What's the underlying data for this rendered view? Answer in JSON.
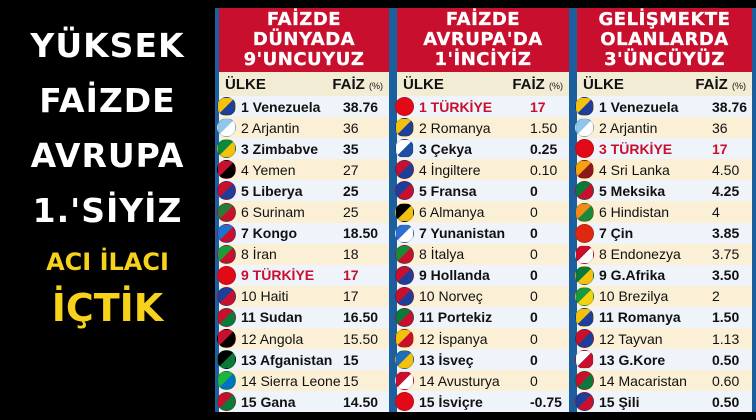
{
  "left": {
    "lines": [
      "YÜKSEK",
      "FAİZDE",
      "AVRUPA",
      "1.'SİYİZ"
    ],
    "yellow1": "ACI İLACI",
    "yellow2": "İÇTİK"
  },
  "colors": {
    "header_red": "#c8102e",
    "highlight_red": "#c8102e",
    "panel_blue": "#1c5f9e",
    "yellow": "#f7d21a"
  },
  "col_country": "ÜLKE",
  "col_rate": "FAİZ",
  "col_unit": "(%)",
  "panels": [
    {
      "title": [
        "FAİZDE",
        "DÜNYADA",
        "9'UNCUYUZ"
      ],
      "rows": [
        {
          "n": "1 Venezuela",
          "v": "38.76",
          "f": [
            "#f4c20d",
            "#1e3f99"
          ]
        },
        {
          "n": "2 Arjantin",
          "v": "36",
          "f": [
            "#8ec7ea",
            "#ffffff"
          ]
        },
        {
          "n": "3 Zimbabve",
          "v": "35",
          "f": [
            "#0a8a3a",
            "#f4c20d"
          ]
        },
        {
          "n": "4 Yemen",
          "v": "27",
          "f": [
            "#c8102e",
            "#000000"
          ]
        },
        {
          "n": "5 Liberya",
          "v": "25",
          "f": [
            "#c8102e",
            "#1e3f99"
          ]
        },
        {
          "n": "6 Surinam",
          "v": "25",
          "f": [
            "#2a7a3a",
            "#c8102e"
          ]
        },
        {
          "n": "7 Kongo",
          "v": "18.50",
          "f": [
            "#1e73d2",
            "#c8102e"
          ]
        },
        {
          "n": "8 İran",
          "v": "18",
          "f": [
            "#1f9a3a",
            "#c8102e"
          ]
        },
        {
          "n": "9 TÜRKİYE",
          "v": "17",
          "f": [
            "#e30a17",
            "#e30a17"
          ],
          "tr": true
        },
        {
          "n": "10 Haiti",
          "v": "17",
          "f": [
            "#1e3f99",
            "#c8102e"
          ]
        },
        {
          "n": "11 Sudan",
          "v": "16.50",
          "f": [
            "#c8102e",
            "#0a7a3a"
          ]
        },
        {
          "n": "12 Angola",
          "v": "15.50",
          "f": [
            "#c8102e",
            "#000000"
          ]
        },
        {
          "n": "13 Afganistan",
          "v": "15",
          "f": [
            "#000000",
            "#0a7a3a"
          ]
        },
        {
          "n": "14 Sierra Leone",
          "v": "15",
          "f": [
            "#1eb53a",
            "#0072c6"
          ]
        },
        {
          "n": "15 Gana",
          "v": "14.50",
          "f": [
            "#c8102e",
            "#0a7a3a"
          ]
        }
      ]
    },
    {
      "title": [
        "FAİZDE",
        "AVRUPA'DA",
        "1'İNCİYİZ"
      ],
      "rows": [
        {
          "n": "1 TÜRKİYE",
          "v": "17",
          "f": [
            "#e30a17",
            "#e30a17"
          ],
          "tr": true
        },
        {
          "n": "2 Romanya",
          "v": "1.50",
          "f": [
            "#f4c20d",
            "#1e3f99"
          ]
        },
        {
          "n": "3 Çekya",
          "v": "0.25",
          "f": [
            "#ffffff",
            "#1e4fa0"
          ]
        },
        {
          "n": "4 İngiltere",
          "v": "0.10",
          "f": [
            "#c8102e",
            "#1e3f99"
          ]
        },
        {
          "n": "5 Fransa",
          "v": "0",
          "f": [
            "#1e3f99",
            "#c8102e"
          ]
        },
        {
          "n": "6 Almanya",
          "v": "0",
          "f": [
            "#000000",
            "#f4c20d"
          ]
        },
        {
          "n": "7 Yunanistan",
          "v": "0",
          "f": [
            "#2e6fd0",
            "#ffffff"
          ]
        },
        {
          "n": "8 İtalya",
          "v": "0",
          "f": [
            "#1a8a3a",
            "#c8102e"
          ]
        },
        {
          "n": "9 Hollanda",
          "v": "0",
          "f": [
            "#c8102e",
            "#1e3f99"
          ]
        },
        {
          "n": "10 Norveç",
          "v": "0",
          "f": [
            "#c8102e",
            "#1e3f99"
          ]
        },
        {
          "n": "11 Portekiz",
          "v": "0",
          "f": [
            "#0a7a3a",
            "#c8102e"
          ]
        },
        {
          "n": "12 İspanya",
          "v": "0",
          "f": [
            "#f4c20d",
            "#c8102e"
          ]
        },
        {
          "n": "13 İsveç",
          "v": "0",
          "f": [
            "#1e6fb8",
            "#f4c20d"
          ]
        },
        {
          "n": "14 Avusturya",
          "v": "0",
          "f": [
            "#c8102e",
            "#ffffff"
          ]
        },
        {
          "n": "15 İsviçre",
          "v": "-0.75",
          "f": [
            "#e30a17",
            "#e30a17"
          ]
        }
      ]
    },
    {
      "title": [
        "GELİŞMEKTE",
        "OLANLARDA",
        "3'ÜNCÜYÜZ"
      ],
      "rows": [
        {
          "n": "1 Venezuela",
          "v": "38.76",
          "f": [
            "#f4c20d",
            "#1e3f99"
          ]
        },
        {
          "n": "2 Arjantin",
          "v": "36",
          "f": [
            "#8ec7ea",
            "#ffffff"
          ]
        },
        {
          "n": "3 TÜRKİYE",
          "v": "17",
          "f": [
            "#e30a17",
            "#e30a17"
          ],
          "tr": true
        },
        {
          "n": "4 Sri Lanka",
          "v": "4.50",
          "f": [
            "#f4a20d",
            "#8a1a1a"
          ]
        },
        {
          "n": "5 Meksika",
          "v": "4.25",
          "f": [
            "#0a7a3a",
            "#c8102e"
          ]
        },
        {
          "n": "6 Hindistan",
          "v": "4",
          "f": [
            "#f48a1a",
            "#1a8a3a"
          ]
        },
        {
          "n": "7 Çin",
          "v": "3.85",
          "f": [
            "#de2910",
            "#de2910"
          ]
        },
        {
          "n": "8 Endonezya",
          "v": "3.75",
          "f": [
            "#c8102e",
            "#ffffff"
          ]
        },
        {
          "n": "9 G.Afrika",
          "v": "3.50",
          "f": [
            "#0a7a3a",
            "#f4c20d"
          ]
        },
        {
          "n": "10 Brezilya",
          "v": "2",
          "f": [
            "#1a9a3a",
            "#f4d20d"
          ]
        },
        {
          "n": "11 Romanya",
          "v": "1.50",
          "f": [
            "#f4c20d",
            "#1e3f99"
          ]
        },
        {
          "n": "12 Tayvan",
          "v": "1.13",
          "f": [
            "#c8102e",
            "#1e3f99"
          ]
        },
        {
          "n": "13 G.Kore",
          "v": "0.50",
          "f": [
            "#ffffff",
            "#c8102e"
          ]
        },
        {
          "n": "14 Macaristan",
          "v": "0.60",
          "f": [
            "#c8102e",
            "#0a7a3a"
          ]
        },
        {
          "n": "15 Şili",
          "v": "0.50",
          "f": [
            "#1e3f99",
            "#c8102e"
          ]
        }
      ]
    }
  ]
}
